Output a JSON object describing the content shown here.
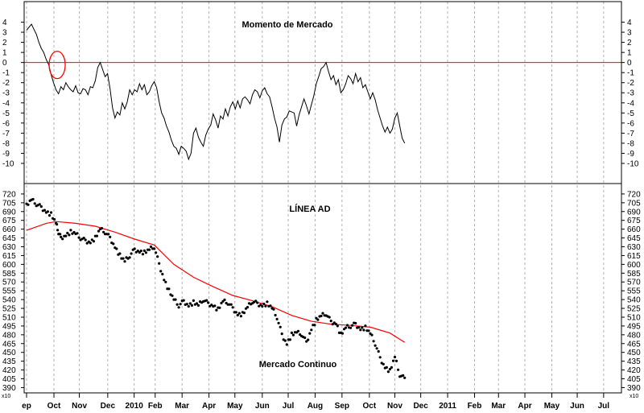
{
  "chart_data": [
    {
      "type": "line",
      "title": "Momento de Mercado",
      "ylim": [
        -11,
        5
      ],
      "y_ticks": [
        "4",
        "3",
        "2",
        "1",
        "0",
        "-1",
        "-2",
        "-3",
        "-4",
        "-5",
        "-6",
        "-7",
        "-8",
        "-9",
        "-10"
      ],
      "y_tick_values": [
        4,
        3,
        2,
        1,
        0,
        -1,
        -2,
        -3,
        -4,
        -5,
        -6,
        -7,
        -8,
        -9,
        -10
      ],
      "reference_line": {
        "value": 0,
        "color": "#ff0000"
      },
      "annotation": {
        "shape": "ellipse",
        "color": "#ff0000",
        "at": {
          "x": "Oct",
          "y": 0
        }
      },
      "series": [
        {
          "color": "#000000",
          "points": [
            [
              0,
              3.2
            ],
            [
              1,
              3.8
            ],
            [
              1.5,
              3.3
            ],
            [
              2,
              2.8
            ],
            [
              2.5,
              2.0
            ],
            [
              3,
              1.4
            ],
            [
              3.5,
              1.0
            ],
            [
              4,
              0.3
            ],
            [
              4.5,
              -0.2
            ],
            [
              5,
              -1.2
            ],
            [
              5.5,
              -2.0
            ],
            [
              6,
              -2.7
            ],
            [
              6.5,
              -3.1
            ],
            [
              7,
              -2.4
            ],
            [
              7.5,
              -2.7
            ],
            [
              8,
              -2.0
            ],
            [
              8.5,
              -2.4
            ],
            [
              9,
              -2.7
            ],
            [
              9.5,
              -2.9
            ],
            [
              10,
              -2.3
            ],
            [
              10.5,
              -3.0
            ],
            [
              11,
              -3.1
            ],
            [
              11.5,
              -2.6
            ],
            [
              12,
              -2.7
            ],
            [
              12.5,
              -3.2
            ],
            [
              13,
              -2.4
            ],
            [
              13.5,
              -2.5
            ],
            [
              14,
              -1.8
            ],
            [
              14.5,
              -0.5
            ],
            [
              15,
              0.0
            ],
            [
              15.5,
              -0.7
            ],
            [
              16,
              -1.4
            ],
            [
              16.5,
              -1.1
            ],
            [
              17,
              -2.6
            ],
            [
              17.5,
              -4.5
            ],
            [
              18,
              -5.5
            ],
            [
              18.5,
              -4.9
            ],
            [
              19,
              -5.2
            ],
            [
              19.5,
              -4.0
            ],
            [
              20,
              -4.6
            ],
            [
              20.5,
              -3.9
            ],
            [
              21,
              -2.7
            ],
            [
              21.5,
              -3.2
            ],
            [
              22,
              -2.7
            ],
            [
              22.5,
              -2.9
            ],
            [
              23,
              -2.1
            ],
            [
              23.5,
              -2.7
            ],
            [
              24,
              -2.2
            ],
            [
              24.5,
              -3.2
            ],
            [
              25,
              -2.9
            ],
            [
              25.5,
              -2.3
            ],
            [
              26,
              -1.9
            ],
            [
              26.5,
              -2.5
            ],
            [
              27,
              -3.9
            ],
            [
              27.5,
              -5.0
            ],
            [
              28,
              -5.5
            ],
            [
              28.5,
              -6.3
            ],
            [
              29,
              -6.9
            ],
            [
              29.5,
              -7.7
            ],
            [
              30,
              -8.3
            ],
            [
              30.5,
              -8.5
            ],
            [
              31,
              -9.1
            ],
            [
              31.5,
              -8.3
            ],
            [
              32,
              -8.5
            ],
            [
              32.5,
              -8.8
            ],
            [
              33,
              -9.6
            ],
            [
              33.5,
              -9.0
            ],
            [
              34,
              -7.0
            ],
            [
              34.5,
              -6.5
            ],
            [
              35,
              -7.4
            ],
            [
              35.5,
              -7.9
            ],
            [
              36,
              -8.3
            ],
            [
              36.5,
              -7.2
            ],
            [
              37,
              -6.6
            ],
            [
              37.5,
              -6.2
            ],
            [
              38,
              -5.1
            ],
            [
              38.5,
              -5.7
            ],
            [
              39,
              -6.5
            ],
            [
              39.5,
              -5.3
            ],
            [
              40,
              -5.6
            ],
            [
              40.5,
              -4.6
            ],
            [
              41,
              -5.3
            ],
            [
              41.5,
              -4.4
            ],
            [
              42,
              -3.9
            ],
            [
              42.5,
              -4.6
            ],
            [
              43,
              -3.8
            ],
            [
              43.5,
              -4.5
            ],
            [
              44,
              -3.6
            ],
            [
              44.5,
              -3.4
            ],
            [
              45,
              -3.7
            ],
            [
              45.5,
              -4.1
            ],
            [
              46,
              -3.2
            ],
            [
              46.5,
              -2.7
            ],
            [
              47,
              -2.9
            ],
            [
              47.5,
              -3.5
            ],
            [
              48,
              -2.8
            ],
            [
              48.5,
              -2.5
            ],
            [
              49,
              -3.1
            ],
            [
              49.5,
              -3.4
            ],
            [
              50,
              -4.4
            ],
            [
              50.5,
              -5.5
            ],
            [
              51,
              -6.4
            ],
            [
              51.5,
              -7.9
            ],
            [
              52,
              -6.2
            ],
            [
              52.5,
              -5.6
            ],
            [
              53,
              -5.4
            ],
            [
              53.5,
              -4.8
            ],
            [
              54,
              -4.9
            ],
            [
              54.5,
              -5.0
            ],
            [
              55,
              -6.3
            ],
            [
              55.5,
              -5.2
            ],
            [
              56,
              -4.4
            ],
            [
              56.5,
              -3.6
            ],
            [
              57,
              -4.3
            ],
            [
              57.5,
              -5.1
            ],
            [
              58,
              -4.2
            ],
            [
              58.5,
              -3.3
            ],
            [
              59,
              -2.1
            ],
            [
              59.5,
              -1.4
            ],
            [
              60,
              -0.6
            ],
            [
              60.5,
              -0.4
            ],
            [
              61,
              0.0
            ],
            [
              61.5,
              -0.9
            ],
            [
              62,
              -1.7
            ],
            [
              62.5,
              -1.3
            ],
            [
              63,
              -2.2
            ],
            [
              63.5,
              -1.7
            ],
            [
              64,
              -3.0
            ],
            [
              64.5,
              -2.7
            ],
            [
              65,
              -2.1
            ],
            [
              65.5,
              -1.3
            ],
            [
              66,
              -1.6
            ],
            [
              66.5,
              -2.1
            ],
            [
              67,
              -1.1
            ],
            [
              67.5,
              -1.9
            ],
            [
              68,
              -1.5
            ],
            [
              68.5,
              -2.5
            ],
            [
              69,
              -2.2
            ],
            [
              69.5,
              -2.9
            ],
            [
              70,
              -3.6
            ],
            [
              70.5,
              -3.0
            ],
            [
              71,
              -3.7
            ],
            [
              71.5,
              -4.7
            ],
            [
              72,
              -5.5
            ],
            [
              72.5,
              -6.3
            ],
            [
              73,
              -6.9
            ],
            [
              73.5,
              -6.4
            ],
            [
              74,
              -7.0
            ],
            [
              74.5,
              -6.6
            ],
            [
              75,
              -5.5
            ],
            [
              75.5,
              -5.0
            ],
            [
              76,
              -6.3
            ],
            [
              76.5,
              -7.5
            ],
            [
              77,
              -8.0
            ]
          ]
        }
      ]
    },
    {
      "type": "line",
      "title": "LÍNEA AD",
      "subtitle": "Mercado Continuo",
      "ylim": [
        381,
        724
      ],
      "y_ticks": [
        "720",
        "705",
        "690",
        "675",
        "660",
        "645",
        "630",
        "615",
        "600",
        "585",
        "570",
        "555",
        "540",
        "525",
        "510",
        "495",
        "480",
        "465",
        "450",
        "435",
        "420",
        "405",
        "390"
      ],
      "y_tick_values": [
        720,
        705,
        690,
        675,
        660,
        645,
        630,
        615,
        600,
        585,
        570,
        555,
        540,
        525,
        510,
        495,
        480,
        465,
        450,
        435,
        420,
        405,
        390
      ],
      "multiplier_label": "x10",
      "series": [
        {
          "style": "dots",
          "color": "#000000",
          "points": [
            [
              0,
              700
            ],
            [
              1,
              710
            ],
            [
              2,
              703
            ],
            [
              3,
              697
            ],
            [
              4,
              690
            ],
            [
              5,
              685
            ],
            [
              6,
              670
            ],
            [
              6.5,
              655
            ],
            [
              7,
              645
            ],
            [
              8,
              650
            ],
            [
              9,
              655
            ],
            [
              10,
              652
            ],
            [
              11,
              645
            ],
            [
              12,
              640
            ],
            [
              13,
              638
            ],
            [
              14,
              645
            ],
            [
              15,
              660
            ],
            [
              16,
              655
            ],
            [
              17,
              645
            ],
            [
              18,
              630
            ],
            [
              19,
              615
            ],
            [
              20,
              605
            ],
            [
              21,
              615
            ],
            [
              22,
              625
            ],
            [
              23,
              622
            ],
            [
              24,
              620
            ],
            [
              25,
              625
            ],
            [
              26,
              630
            ],
            [
              27,
              600
            ],
            [
              28,
              575
            ],
            [
              29,
              555
            ],
            [
              30,
              540
            ],
            [
              31,
              530
            ],
            [
              32,
              537
            ],
            [
              33,
              530
            ],
            [
              34,
              535
            ],
            [
              35,
              530
            ],
            [
              36,
              540
            ],
            [
              37,
              533
            ],
            [
              38,
              530
            ],
            [
              39,
              523
            ],
            [
              40,
              537
            ],
            [
              41,
              535
            ],
            [
              42,
              525
            ],
            [
              43,
              515
            ],
            [
              44,
              515
            ],
            [
              45,
              527
            ],
            [
              46,
              537
            ],
            [
              47,
              533
            ],
            [
              48,
              530
            ],
            [
              49,
              533
            ],
            [
              50,
              525
            ],
            [
              51,
              510
            ],
            [
              52,
              480
            ],
            [
              53,
              465
            ],
            [
              54,
              480
            ],
            [
              55,
              484
            ],
            [
              56,
              481
            ],
            [
              57,
              467
            ],
            [
              58,
              490
            ],
            [
              59,
              505
            ],
            [
              60,
              512
            ],
            [
              61,
              516
            ],
            [
              62,
              502
            ],
            [
              63,
              500
            ],
            [
              64,
              480
            ],
            [
              65,
              492
            ],
            [
              66,
              495
            ],
            [
              67,
              498
            ],
            [
              68,
              490
            ],
            [
              69,
              492
            ],
            [
              70,
              482
            ],
            [
              71,
              465
            ],
            [
              72,
              440
            ],
            [
              73,
              425
            ],
            [
              74,
              418
            ],
            [
              75,
              442
            ],
            [
              76,
              412
            ],
            [
              77,
              405
            ]
          ]
        },
        {
          "style": "line",
          "color": "#ff0000",
          "points": [
            [
              0,
              658
            ],
            [
              4,
              670
            ],
            [
              6,
              673
            ],
            [
              10,
              670
            ],
            [
              14,
              665
            ],
            [
              18,
              655
            ],
            [
              22,
              643
            ],
            [
              26,
              633
            ],
            [
              30,
              600
            ],
            [
              34,
              578
            ],
            [
              38,
              562
            ],
            [
              42,
              547
            ],
            [
              46,
              538
            ],
            [
              50,
              528
            ],
            [
              54,
              513
            ],
            [
              58,
              503
            ],
            [
              62,
              498
            ],
            [
              66,
              496
            ],
            [
              70,
              493
            ],
            [
              74,
              483
            ],
            [
              77,
              467
            ]
          ]
        }
      ]
    }
  ],
  "x_axis": {
    "labels": [
      "ep",
      "Oct",
      "Nov",
      "Dec",
      "2010",
      "Feb",
      "Mar",
      "Apr",
      "May",
      "Jun",
      "Jul",
      "Aug",
      "Sep",
      "Oct",
      "Nov",
      "Dec",
      "2011",
      "Feb",
      "Mar",
      "Apr",
      "May",
      "Jun",
      "Jul"
    ],
    "positions": [
      0,
      5.6,
      10.8,
      16.6,
      22.0,
      26.3,
      31.8,
      37.3,
      42.6,
      48.2,
      53.5,
      59.0,
      64.5,
      70.1,
      75.3,
      80.6,
      86.1,
      91.6,
      96.5,
      101.9,
      107.4,
      112.6,
      118.0
    ],
    "period_unit": "weeks"
  },
  "colors": {
    "momentum_line": "#000000",
    "ad_dots": "#000000",
    "ad_average": "#ff0000",
    "zero_line": "#ff0000",
    "grid": "#b0b0b0"
  }
}
